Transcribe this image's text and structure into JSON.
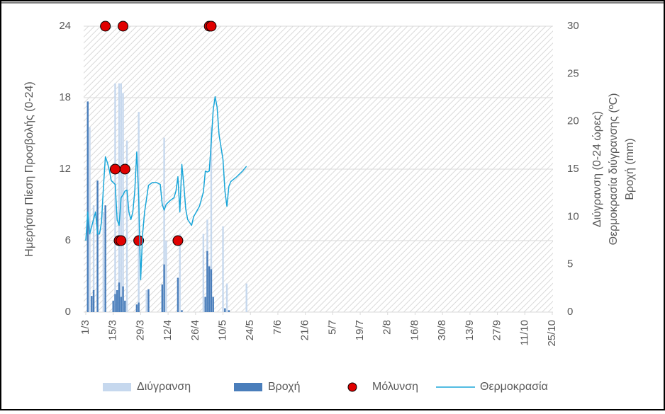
{
  "chart_data": {
    "type": "combo",
    "y_label": "Ημερήσια Πίεση Προσβολής (0-24)",
    "y2_label": [
      "Διύγρανση (0-24 ώρες)",
      "Θερμοκρασία διύγρανσης (ºC)",
      "Βροχή (mm)"
    ],
    "xlim": [
      0,
      238
    ],
    "xticks": [
      {
        "value": 0,
        "label": "1/3"
      },
      {
        "value": 14,
        "label": "15/3"
      },
      {
        "value": 28,
        "label": "29/3"
      },
      {
        "value": 42,
        "label": "12/4"
      },
      {
        "value": 56,
        "label": "26/4"
      },
      {
        "value": 70,
        "label": "10/5"
      },
      {
        "value": 84,
        "label": "24/5"
      },
      {
        "value": 98,
        "label": "7/6"
      },
      {
        "value": 112,
        "label": "21/6"
      },
      {
        "value": 126,
        "label": "5/7"
      },
      {
        "value": 140,
        "label": "19/7"
      },
      {
        "value": 154,
        "label": "2/8"
      },
      {
        "value": 168,
        "label": "16/8"
      },
      {
        "value": 182,
        "label": "30/8"
      },
      {
        "value": 196,
        "label": "13/9"
      },
      {
        "value": 210,
        "label": "27/9"
      },
      {
        "value": 224,
        "label": "11/10"
      },
      {
        "value": 238,
        "label": "25/10"
      }
    ],
    "ylim": [
      0,
      24
    ],
    "yticks": [
      0,
      6,
      12,
      18,
      24
    ],
    "y2lim": [
      0,
      30
    ],
    "y2ticks": [
      0,
      5,
      10,
      15,
      20,
      25,
      30
    ],
    "grid": true,
    "legend": "bottom",
    "series": [
      {
        "name": "Διύγρανση",
        "type": "bar",
        "axis": "y2",
        "color": "#c6d8ee",
        "x": [
          2,
          4,
          9,
          15,
          17,
          18,
          19,
          21,
          27,
          31,
          40,
          41,
          48,
          60,
          62,
          64,
          70,
          72,
          82
        ],
        "values": [
          19.4,
          11.2,
          10.5,
          24,
          24,
          24,
          23,
          18,
          21,
          2.3,
          18.3,
          7.5,
          8.2,
          8.2,
          9.7,
          19.4,
          9,
          3,
          3
        ]
      },
      {
        "name": "Βροχή",
        "type": "bar",
        "axis": "y2",
        "color": "#4a7ebb",
        "x": [
          1,
          3,
          4,
          6,
          10,
          14,
          15,
          16,
          17,
          18,
          19,
          20,
          26,
          27,
          32,
          39,
          40,
          47,
          49,
          61,
          62,
          63,
          64,
          65,
          71,
          73
        ],
        "values": [
          22.1,
          1.7,
          2.3,
          13.8,
          11.2,
          1.2,
          1.9,
          2.3,
          3.1,
          1.6,
          2.7,
          1.2,
          0.8,
          1,
          2.4,
          2.9,
          5,
          3.6,
          0.2,
          1.6,
          6.4,
          4.8,
          4.5,
          1.6,
          0.4,
          0.2
        ]
      },
      {
        "name": "Μόλυνση",
        "type": "scatter",
        "axis": "y",
        "color": "#e00000",
        "x": [
          10,
          19,
          63,
          64,
          15,
          20,
          17,
          18,
          27,
          47
        ],
        "values": [
          24,
          24,
          24,
          24,
          12,
          12,
          6,
          6,
          6,
          6
        ]
      },
      {
        "name": "Θερμοκρασία",
        "type": "line",
        "axis": "y2",
        "color": "#1aa6d9",
        "x": [
          0,
          1,
          2,
          3,
          5,
          6,
          7,
          8,
          9,
          10,
          11,
          12,
          13,
          15,
          16,
          17,
          18,
          19,
          20,
          21,
          22,
          23,
          24,
          25,
          26,
          27,
          28,
          29,
          30,
          32,
          34,
          36,
          38,
          39,
          40,
          41,
          43,
          45,
          46,
          47,
          48,
          49,
          50,
          51,
          52,
          54,
          55,
          58,
          60,
          61,
          62,
          63,
          64,
          65,
          66,
          67,
          68,
          70,
          71,
          72,
          73,
          74,
          77,
          80,
          82
        ],
        "values": [
          7.5,
          10.5,
          8.2,
          9,
          10.5,
          8.2,
          8.2,
          9.4,
          13.1,
          16.3,
          15.7,
          14.9,
          13.8,
          13.4,
          9.7,
          9.1,
          12,
          12.3,
          12.7,
          12.8,
          10.5,
          9.7,
          10.5,
          12.7,
          16.8,
          12,
          3.4,
          8.2,
          10.5,
          13.3,
          13.6,
          13.6,
          13.4,
          11.3,
          10.7,
          11.3,
          11.7,
          12,
          12.7,
          14.2,
          10.5,
          15.5,
          13.4,
          10.8,
          9.7,
          9.1,
          10,
          11.1,
          12.6,
          14.8,
          14.7,
          14.8,
          17.8,
          21.2,
          22.6,
          21.5,
          18.6,
          16,
          12.7,
          11.1,
          13.2,
          13.7,
          14.2,
          14.8,
          15.3
        ]
      }
    ]
  }
}
